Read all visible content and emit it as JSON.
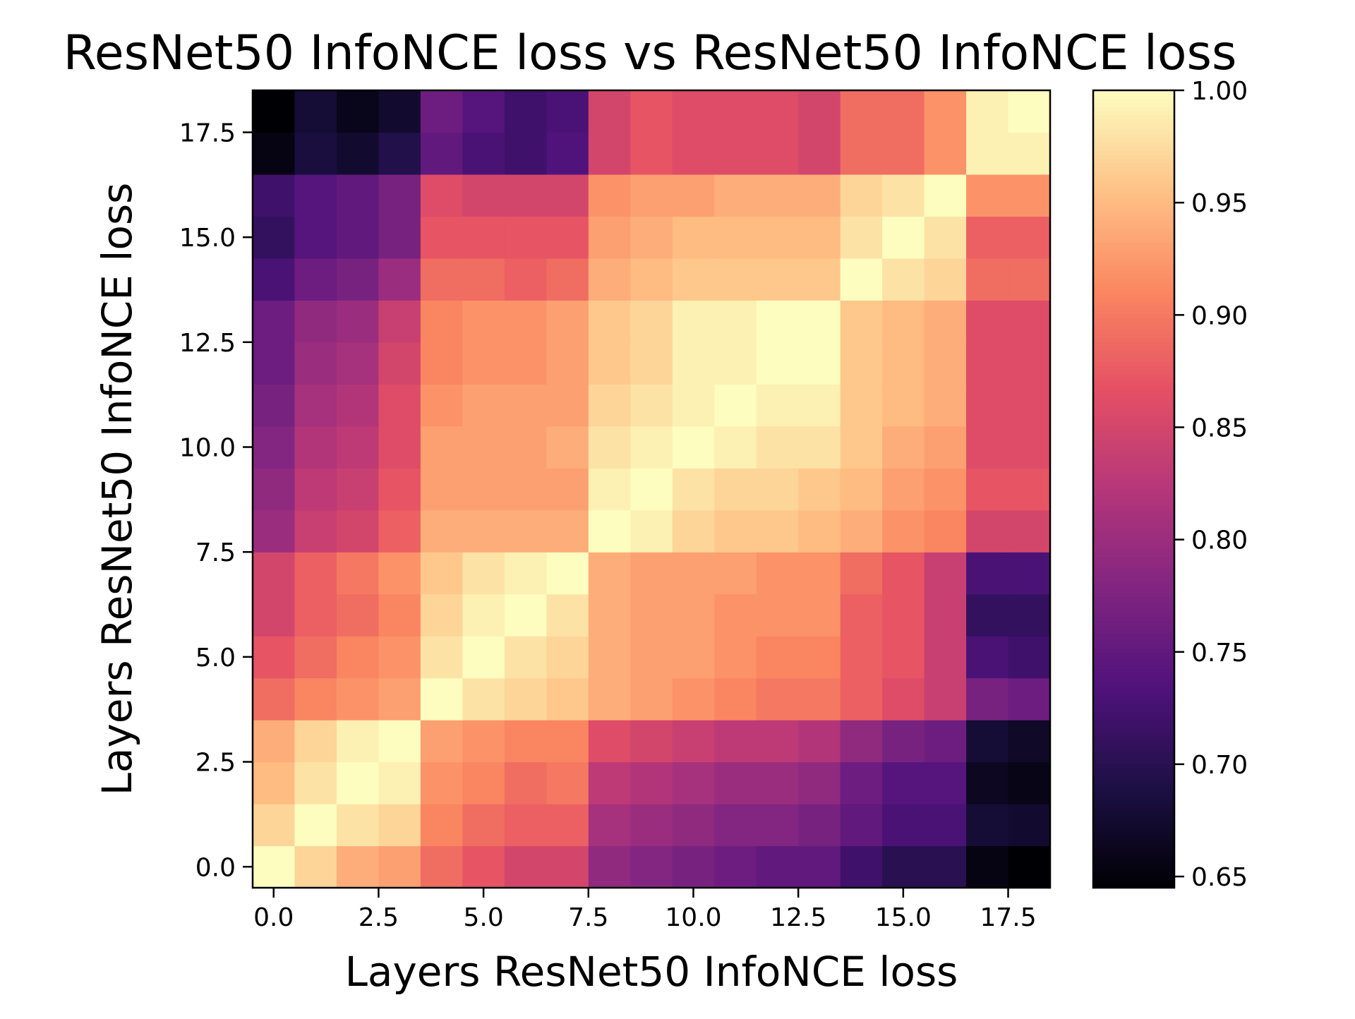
{
  "chart_data": {
    "type": "heatmap",
    "title": "ResNet50 InfoNCE loss vs ResNet50 InfoNCE loss",
    "xlabel": "Layers ResNet50 InfoNCE loss",
    "ylabel": "Layers ResNet50 InfoNCE loss",
    "x_ticks": [
      "0.0",
      "2.5",
      "5.0",
      "7.5",
      "10.0",
      "12.5",
      "15.0",
      "17.5"
    ],
    "y_ticks": [
      "0.0",
      "2.5",
      "5.0",
      "7.5",
      "10.0",
      "12.5",
      "15.0",
      "17.5"
    ],
    "tick_values": [
      0,
      2.5,
      5,
      7.5,
      10,
      12.5,
      15,
      17.5
    ],
    "xlim": [
      -0.5,
      18.5
    ],
    "ylim": [
      -0.5,
      18.5
    ],
    "colormap": "magma",
    "colorbar": {
      "range": [
        0.645,
        1.0
      ],
      "ticks": [
        "0.65",
        "0.70",
        "0.75",
        "0.80",
        "0.85",
        "0.90",
        "0.95",
        "1.00"
      ],
      "tick_values": [
        0.65,
        0.7,
        0.75,
        0.8,
        0.85,
        0.9,
        0.95,
        1.0
      ]
    },
    "rows_bottom_to_top": [
      [
        1.0,
        0.97,
        0.94,
        0.93,
        0.89,
        0.87,
        0.85,
        0.85,
        0.79,
        0.78,
        0.77,
        0.76,
        0.75,
        0.75,
        0.72,
        0.7,
        0.7,
        0.655,
        0.645
      ],
      [
        0.97,
        1.0,
        0.98,
        0.97,
        0.91,
        0.89,
        0.88,
        0.88,
        0.81,
        0.8,
        0.79,
        0.78,
        0.78,
        0.77,
        0.75,
        0.73,
        0.73,
        0.68,
        0.675
      ],
      [
        0.95,
        0.98,
        1.0,
        0.99,
        0.92,
        0.91,
        0.89,
        0.9,
        0.83,
        0.82,
        0.81,
        0.8,
        0.8,
        0.79,
        0.76,
        0.74,
        0.74,
        0.665,
        0.658
      ],
      [
        0.94,
        0.97,
        0.99,
        1.0,
        0.93,
        0.92,
        0.91,
        0.91,
        0.86,
        0.85,
        0.84,
        0.83,
        0.83,
        0.82,
        0.79,
        0.77,
        0.76,
        0.68,
        0.67
      ],
      [
        0.89,
        0.91,
        0.92,
        0.93,
        1.0,
        0.98,
        0.97,
        0.96,
        0.94,
        0.93,
        0.92,
        0.91,
        0.9,
        0.9,
        0.88,
        0.86,
        0.84,
        0.77,
        0.76
      ],
      [
        0.87,
        0.89,
        0.91,
        0.92,
        0.98,
        1.0,
        0.98,
        0.97,
        0.94,
        0.93,
        0.93,
        0.92,
        0.91,
        0.91,
        0.88,
        0.87,
        0.84,
        0.73,
        0.72
      ],
      [
        0.85,
        0.88,
        0.89,
        0.91,
        0.97,
        0.99,
        1.0,
        0.98,
        0.94,
        0.93,
        0.93,
        0.92,
        0.92,
        0.92,
        0.88,
        0.87,
        0.84,
        0.71,
        0.71
      ],
      [
        0.85,
        0.88,
        0.9,
        0.92,
        0.96,
        0.98,
        0.99,
        1.0,
        0.94,
        0.93,
        0.93,
        0.93,
        0.92,
        0.92,
        0.89,
        0.87,
        0.84,
        0.73,
        0.73
      ],
      [
        0.8,
        0.84,
        0.85,
        0.88,
        0.94,
        0.94,
        0.94,
        0.94,
        1.0,
        0.99,
        0.97,
        0.96,
        0.96,
        0.95,
        0.94,
        0.92,
        0.91,
        0.85,
        0.85
      ],
      [
        0.79,
        0.83,
        0.84,
        0.87,
        0.93,
        0.93,
        0.93,
        0.93,
        0.99,
        1.0,
        0.98,
        0.97,
        0.97,
        0.96,
        0.95,
        0.93,
        0.92,
        0.87,
        0.87
      ],
      [
        0.78,
        0.82,
        0.83,
        0.86,
        0.93,
        0.93,
        0.93,
        0.94,
        0.98,
        0.99,
        1.0,
        0.99,
        0.98,
        0.98,
        0.96,
        0.94,
        0.93,
        0.86,
        0.86
      ],
      [
        0.77,
        0.81,
        0.82,
        0.86,
        0.92,
        0.93,
        0.93,
        0.93,
        0.97,
        0.98,
        0.99,
        1.0,
        0.99,
        0.99,
        0.96,
        0.95,
        0.94,
        0.86,
        0.86
      ],
      [
        0.76,
        0.8,
        0.81,
        0.85,
        0.91,
        0.92,
        0.92,
        0.93,
        0.96,
        0.97,
        0.99,
        0.99,
        1.0,
        1.0,
        0.96,
        0.95,
        0.94,
        0.86,
        0.86
      ],
      [
        0.76,
        0.79,
        0.8,
        0.84,
        0.91,
        0.92,
        0.92,
        0.93,
        0.96,
        0.97,
        0.99,
        0.99,
        1.0,
        1.0,
        0.96,
        0.95,
        0.94,
        0.86,
        0.86
      ],
      [
        0.73,
        0.76,
        0.77,
        0.8,
        0.89,
        0.89,
        0.88,
        0.89,
        0.94,
        0.95,
        0.96,
        0.96,
        0.96,
        0.96,
        1.0,
        0.98,
        0.97,
        0.89,
        0.89
      ],
      [
        0.71,
        0.74,
        0.75,
        0.77,
        0.87,
        0.87,
        0.87,
        0.87,
        0.93,
        0.94,
        0.95,
        0.95,
        0.95,
        0.95,
        0.98,
        1.0,
        0.98,
        0.88,
        0.88
      ],
      [
        0.72,
        0.74,
        0.75,
        0.77,
        0.86,
        0.85,
        0.85,
        0.85,
        0.92,
        0.93,
        0.93,
        0.94,
        0.94,
        0.94,
        0.97,
        0.98,
        1.0,
        0.92,
        0.92
      ],
      [
        0.655,
        0.685,
        0.675,
        0.695,
        0.75,
        0.73,
        0.72,
        0.735,
        0.85,
        0.87,
        0.86,
        0.86,
        0.86,
        0.85,
        0.89,
        0.89,
        0.92,
        0.99,
        0.99
      ],
      [
        0.645,
        0.68,
        0.66,
        0.675,
        0.76,
        0.74,
        0.72,
        0.73,
        0.85,
        0.87,
        0.86,
        0.86,
        0.86,
        0.85,
        0.89,
        0.89,
        0.92,
        0.99,
        1.0
      ]
    ]
  }
}
